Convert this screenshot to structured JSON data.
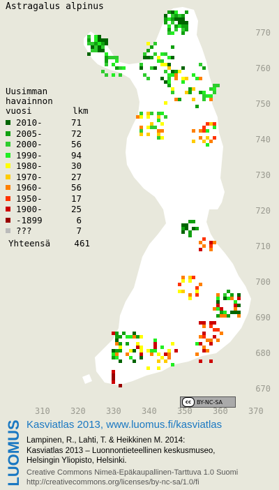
{
  "title": "Astragalus alpinus",
  "legend": {
    "heading": [
      "Uusimman",
      "havainnon"
    ],
    "col_year": "vuosi",
    "col_count": "lkm",
    "rows": [
      {
        "year": "2010-",
        "count": "71",
        "color": "#006400"
      },
      {
        "year": "2005-",
        "count": "72",
        "color": "#10a010"
      },
      {
        "year": "2000-",
        "count": "56",
        "color": "#2ecc2e"
      },
      {
        "year": "1990-",
        "count": "94",
        "color": "#22ee22"
      },
      {
        "year": "1980-",
        "count": "30",
        "color": "#ffff00"
      },
      {
        "year": "1970-",
        "count": "27",
        "color": "#ffcc00"
      },
      {
        "year": "1960-",
        "count": "56",
        "color": "#ff8000"
      },
      {
        "year": "1950-",
        "count": "17",
        "color": "#ff3300"
      },
      {
        "year": "1900-",
        "count": "25",
        "color": "#cc0000"
      },
      {
        "year": "-1899",
        "count": "6",
        "color": "#990000"
      },
      {
        "year": "???",
        "count": "7",
        "color": "#bbbbbb"
      }
    ],
    "total_label": "Yhteensä",
    "total_count": "461"
  },
  "axis": {
    "y_labels": [
      "770",
      "760",
      "750",
      "740",
      "730",
      "720",
      "710",
      "700",
      "690",
      "680",
      "670"
    ],
    "x_labels": [
      "310",
      "320",
      "330",
      "340",
      "350",
      "360",
      "370"
    ]
  },
  "license_badge": "BY-NC-SA",
  "license_badge_cc": "cc",
  "brand": "LUOMUS",
  "footer": {
    "title": "Kasviatlas 2013, www.luomus.fi/kasviatlas",
    "citation": [
      "Lampinen, R., Lahti, T. & Heikkinen M. 2014:",
      "Kasviatlas 2013 – Luonnontieteellinen keskusmuseo,",
      "Helsingin Yliopisto, Helsinki."
    ],
    "license": [
      "Creative Commons Nimeä-Epäkaupallinen-Tarttuva 1.0 Suomi",
      "http://creativecommons.org/licenses/by-nc-sa/1.0/fi"
    ]
  }
}
